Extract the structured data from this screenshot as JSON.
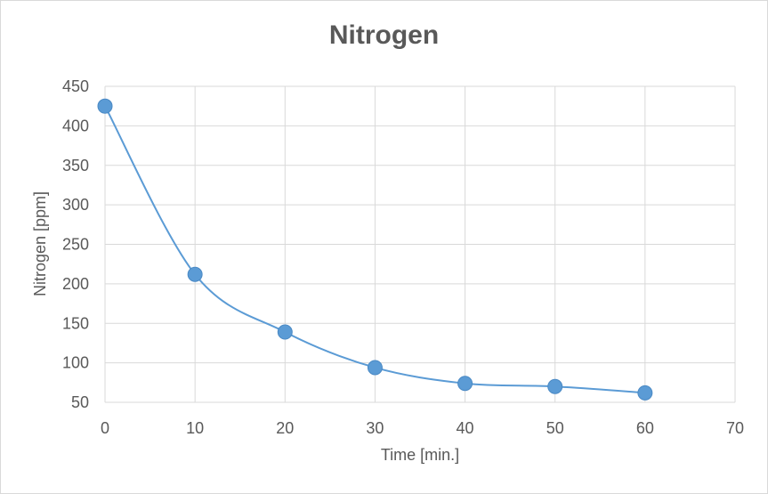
{
  "chart_data": {
    "type": "line",
    "title": "Nitrogen",
    "xlabel": "Time [min.]",
    "ylabel": "Nitrogen [ppm]",
    "x": [
      0,
      10,
      20,
      30,
      40,
      50,
      60
    ],
    "series": [
      {
        "values": [
          425,
          212,
          139,
          94,
          74,
          70,
          62
        ]
      }
    ],
    "xlim": [
      0,
      70
    ],
    "ylim": [
      50,
      450
    ],
    "xticks": [
      0,
      10,
      20,
      30,
      40,
      50,
      60,
      70
    ],
    "yticks": [
      50,
      100,
      150,
      200,
      250,
      300,
      350,
      400,
      450
    ],
    "grid": true,
    "smooth": true,
    "legend": "none",
    "colors": {
      "line": "#5b9bd5",
      "marker": "#5b9bd5",
      "grid": "#d9d9d9",
      "text": "#595959"
    }
  }
}
